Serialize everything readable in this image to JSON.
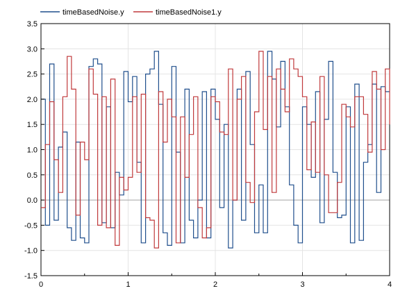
{
  "chart_data": {
    "type": "line",
    "step": true,
    "title": "",
    "xlabel": "",
    "ylabel": "",
    "xlim": [
      0,
      4
    ],
    "ylim": [
      -1.5,
      3.5
    ],
    "x_ticks": [
      0,
      1,
      2,
      3,
      4
    ],
    "y_ticks": [
      -1.5,
      -1.0,
      -0.5,
      0.0,
      0.5,
      1.0,
      1.5,
      2.0,
      2.5,
      3.0,
      3.5
    ],
    "x_tick_labels": [
      "0",
      "1",
      "2",
      "3",
      "4"
    ],
    "y_tick_labels": [
      "-1.5",
      "-1.0",
      "-0.5",
      "0.0",
      "0.5",
      "1.0",
      "1.5",
      "2.0",
      "2.5",
      "3.0",
      "3.5"
    ],
    "grid": true,
    "legend_position": "top-left",
    "series": [
      {
        "name": "timeBasedNoise.y",
        "color": "#1f4e8c",
        "x": [
          0,
          0.05,
          0.1,
          0.15,
          0.2,
          0.25,
          0.3,
          0.35,
          0.4,
          0.45,
          0.5,
          0.55,
          0.6,
          0.65,
          0.7,
          0.75,
          0.8,
          0.85,
          0.9,
          0.95,
          1.0,
          1.05,
          1.1,
          1.15,
          1.2,
          1.25,
          1.3,
          1.35,
          1.4,
          1.45,
          1.5,
          1.55,
          1.6,
          1.65,
          1.7,
          1.75,
          1.8,
          1.85,
          1.9,
          1.95,
          2.0,
          2.05,
          2.1,
          2.15,
          2.2,
          2.25,
          2.3,
          2.35,
          2.4,
          2.45,
          2.5,
          2.55,
          2.6,
          2.65,
          2.7,
          2.75,
          2.8,
          2.85,
          2.9,
          2.95,
          3.0,
          3.05,
          3.1,
          3.15,
          3.2,
          3.25,
          3.3,
          3.35,
          3.4,
          3.45,
          3.5,
          3.55,
          3.6,
          3.65,
          3.7,
          3.75,
          3.8,
          3.85,
          3.9,
          3.95,
          4.0
        ],
        "y": [
          2.0,
          -0.5,
          2.7,
          -0.4,
          1.05,
          1.35,
          -0.55,
          -0.8,
          1.15,
          -0.75,
          -0.85,
          2.65,
          2.8,
          2.7,
          -0.45,
          1.85,
          -0.55,
          0.55,
          0.1,
          2.55,
          1.95,
          2.45,
          0.75,
          -0.85,
          2.5,
          2.6,
          2.95,
          1.9,
          -0.65,
          -0.9,
          2.65,
          0.95,
          -0.85,
          2.2,
          -0.4,
          -0.75,
          0.0,
          2.15,
          -0.75,
          2.2,
          1.6,
          -0.15,
          1.5,
          -0.95,
          0.0,
          2.2,
          -0.4,
          2.55,
          1.1,
          -0.65,
          0.3,
          -0.65,
          2.95,
          2.4,
          1.45,
          2.75,
          1.85,
          0.3,
          -0.5,
          -0.85,
          1.85,
          1.5,
          0.45,
          2.15,
          -0.45,
          1.6,
          2.75,
          0.55,
          -0.35,
          -0.3,
          1.85,
          -0.85,
          2.3,
          -0.8,
          0.75,
          1.1,
          2.3,
          0.15,
          2.25,
          2.15,
          2.15
        ]
      },
      {
        "name": "timeBasedNoise1.y",
        "color": "#c0393b",
        "x": [
          0,
          0.05,
          0.1,
          0.15,
          0.2,
          0.25,
          0.3,
          0.35,
          0.4,
          0.45,
          0.5,
          0.55,
          0.6,
          0.65,
          0.7,
          0.75,
          0.8,
          0.85,
          0.9,
          0.95,
          1.0,
          1.05,
          1.1,
          1.15,
          1.2,
          1.25,
          1.3,
          1.35,
          1.4,
          1.45,
          1.5,
          1.55,
          1.6,
          1.65,
          1.7,
          1.75,
          1.8,
          1.85,
          1.9,
          1.95,
          2.0,
          2.05,
          2.1,
          2.15,
          2.2,
          2.25,
          2.3,
          2.35,
          2.4,
          2.45,
          2.5,
          2.55,
          2.6,
          2.65,
          2.7,
          2.75,
          2.8,
          2.85,
          2.9,
          2.95,
          3.0,
          3.05,
          3.1,
          3.15,
          3.2,
          3.25,
          3.3,
          3.35,
          3.4,
          3.45,
          3.5,
          3.55,
          3.6,
          3.65,
          3.7,
          3.75,
          3.8,
          3.85,
          3.9,
          3.95,
          4.0
        ],
        "y": [
          -0.15,
          1.1,
          1.95,
          0.8,
          0.15,
          2.05,
          2.85,
          2.2,
          -0.3,
          1.15,
          0.8,
          2.6,
          2.1,
          -0.5,
          2.05,
          -0.55,
          2.4,
          -0.9,
          0.45,
          0.2,
          0.45,
          2.05,
          0.55,
          2.1,
          -0.35,
          -0.4,
          -0.95,
          2.15,
          1.15,
          2.0,
          1.65,
          -0.85,
          1.65,
          0.45,
          1.3,
          2.05,
          -0.15,
          -0.75,
          -0.55,
          2.05,
          1.95,
          1.35,
          1.3,
          2.6,
          0.0,
          2.0,
          2.45,
          0.35,
          -0.05,
          1.75,
          2.95,
          1.4,
          2.45,
          0.15,
          2.6,
          2.2,
          1.75,
          2.8,
          2.6,
          2.45,
          2.05,
          0.6,
          1.55,
          0.55,
          2.45,
          0.5,
          -0.25,
          -0.25,
          0.35,
          1.9,
          1.65,
          1.45,
          2.05,
          2.05,
          1.7,
          0.95,
          2.55,
          2.2,
          1.0,
          2.6,
          1.5
        ]
      }
    ]
  }
}
